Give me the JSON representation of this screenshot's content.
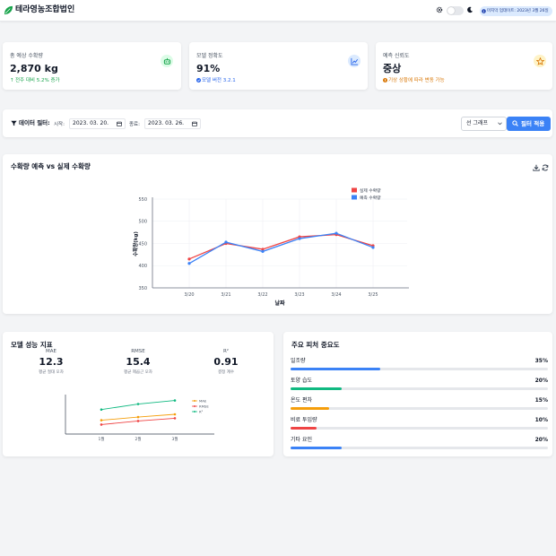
{
  "header": {
    "brand": "테라영농조합법인",
    "update_badge": "마지막 업데이트: 2023년 3월 26일",
    "colors": {
      "brand_icon": "#16a34a",
      "badge_bg": "#dbeafe"
    }
  },
  "kpis": [
    {
      "label": "총 예상 수확량",
      "value": "2,870 kg",
      "sub": "전주 대비 5.2% 증가",
      "sub_color": "#16a34a",
      "icon": "leaf-icon",
      "icon_bg": "#dcfce7"
    },
    {
      "label": "모델 정확도",
      "value": "91%",
      "sub": "모델 버전 3.2.1",
      "sub_color": "#2563eb",
      "icon": "chart-line-icon",
      "icon_bg": "#dbeafe"
    },
    {
      "label": "예측 신뢰도",
      "value": "중상",
      "sub": "기상 상황에 따라 변동 가능",
      "sub_color": "#d97706",
      "icon": "star-icon",
      "icon_bg": "#fef3c7"
    }
  ],
  "filter": {
    "title": "데이터 필터:",
    "start_label": "시작:",
    "start_value": "2023. 03. 20.",
    "end_label": "종료:",
    "end_value": "2023. 03. 26.",
    "chart_type": "선 그래프",
    "apply_label": "필터 적용"
  },
  "main_chart": {
    "title": "수확량 예측 vs 실제 수확량",
    "chart_data": {
      "type": "line",
      "categories": [
        "3/20",
        "3/21",
        "3/22",
        "3/23",
        "3/24",
        "3/25"
      ],
      "series": [
        {
          "name": "실제 수확량",
          "color": "#ef4444",
          "values": [
            415,
            450,
            437,
            465,
            470,
            445
          ]
        },
        {
          "name": "예측 수확량",
          "color": "#3b82f6",
          "values": [
            405,
            453,
            432,
            461,
            473,
            441
          ]
        }
      ],
      "xlabel": "날짜",
      "ylabel": "수확량(kg)",
      "ylim": [
        350,
        550
      ],
      "yticks": [
        350,
        400,
        450,
        500,
        550
      ],
      "grid": true,
      "legend": "top-right"
    }
  },
  "performance": {
    "title": "모델 성능 지표",
    "metrics": [
      {
        "name": "MAE",
        "value": "12.3",
        "desc": "평균 절대 오차"
      },
      {
        "name": "RMSE",
        "value": "15.4",
        "desc": "평균 제곱근 오차"
      },
      {
        "name": "R²",
        "value": "0.91",
        "desc": "결정 계수"
      }
    ],
    "chart_data": {
      "type": "line",
      "categories": [
        "1월",
        "2월",
        "3월"
      ],
      "series": [
        {
          "name": "MAE",
          "color": "#f59e0b",
          "values": [
            0.35,
            0.43,
            0.5
          ]
        },
        {
          "name": "RMSE",
          "color": "#ef4444",
          "values": [
            0.24,
            0.33,
            0.4
          ]
        },
        {
          "name": "R²",
          "color": "#10b981",
          "values": [
            0.62,
            0.76,
            0.85
          ]
        }
      ],
      "ylim": [
        0,
        1
      ],
      "grid": false,
      "legend": "top-right"
    }
  },
  "features": {
    "title": "주요 피처 중요도",
    "items": [
      {
        "name": "일조량",
        "pct": "35%",
        "value": 0.35,
        "color": "#3b82f6"
      },
      {
        "name": "토양 습도",
        "pct": "20%",
        "value": 0.2,
        "color": "#10b981"
      },
      {
        "name": "온도 편차",
        "pct": "15%",
        "value": 0.15,
        "color": "#f59e0b"
      },
      {
        "name": "비료 투입량",
        "pct": "10%",
        "value": 0.1,
        "color": "#ef4444"
      },
      {
        "name": "기타 요인",
        "pct": "20%",
        "value": 0.2,
        "color": "#3b82f6"
      }
    ]
  }
}
